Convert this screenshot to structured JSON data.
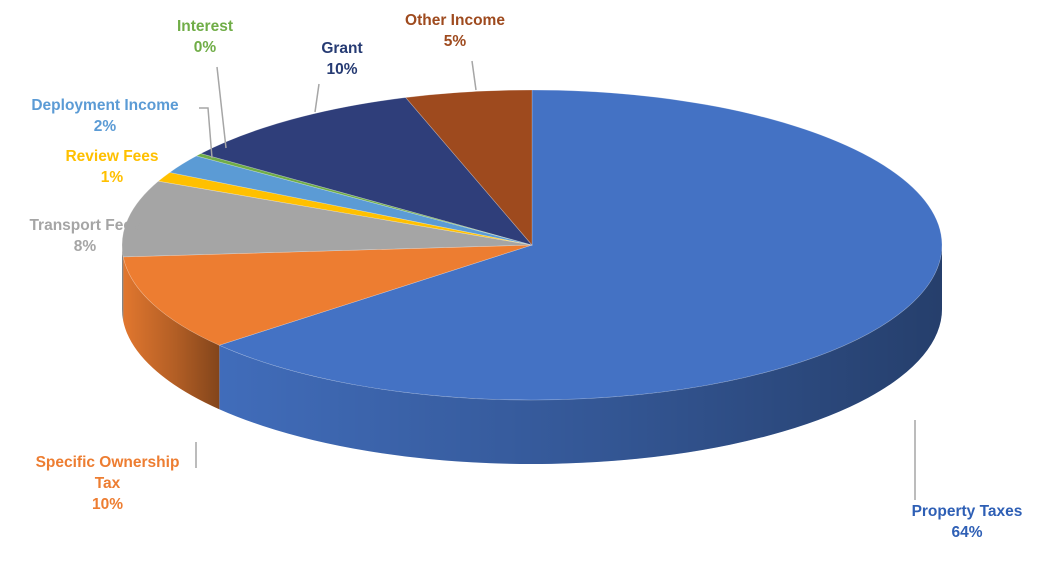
{
  "chart_data": {
    "type": "pie",
    "style": "3d",
    "slices": [
      {
        "name": "Property Taxes",
        "label": "Property Taxes",
        "pct_label": "64%",
        "value": 64,
        "color": "#4472C4",
        "dark": "#22396B"
      },
      {
        "name": "Specific Ownership Tax",
        "label_lines": [
          "Specific Ownership",
          "Tax"
        ],
        "pct_label": "10%",
        "value": 10,
        "color": "#ED7D31",
        "dark": "#B85F1F"
      },
      {
        "name": "Transport Fees",
        "label": "Transport Fees",
        "pct_label": "8%",
        "value": 8,
        "color": "#A5A5A5",
        "dark": "#7A7A7A"
      },
      {
        "name": "Review Fees",
        "label": "Review Fees",
        "pct_label": "1%",
        "value": 1,
        "color": "#FFC000",
        "dark": "#C49300"
      },
      {
        "name": "Deployment Income",
        "label": "Deployment Income",
        "pct_label": "2%",
        "value": 2,
        "color": "#5B9BD5",
        "dark": "#3D73A3"
      },
      {
        "name": "Interest",
        "label": "Interest",
        "pct_label": "0%",
        "value": 0.3,
        "color": "#70AD47",
        "dark": "#4F7E31"
      },
      {
        "name": "Grant",
        "label": "Grant",
        "pct_label": "10%",
        "value": 10,
        "color": "#2F3E7A",
        "dark": "#1E2853"
      },
      {
        "name": "Other Income",
        "label": "Other Income",
        "pct_label": "5%",
        "value": 5,
        "color": "#9E4A1E",
        "dark": "#6E3212"
      }
    ],
    "label_colors": {
      "Property Taxes": "#2E5FB5",
      "Specific Ownership Tax": "#ED7D31",
      "Transport Fees": "#A5A5A5",
      "Review Fees": "#FFC000",
      "Deployment Income": "#5B9BD5",
      "Interest": "#70AD47",
      "Grant": "#263B73",
      "Other Income": "#9E4A1E"
    },
    "start_angle_deg": -90,
    "direction": "clockwise"
  }
}
